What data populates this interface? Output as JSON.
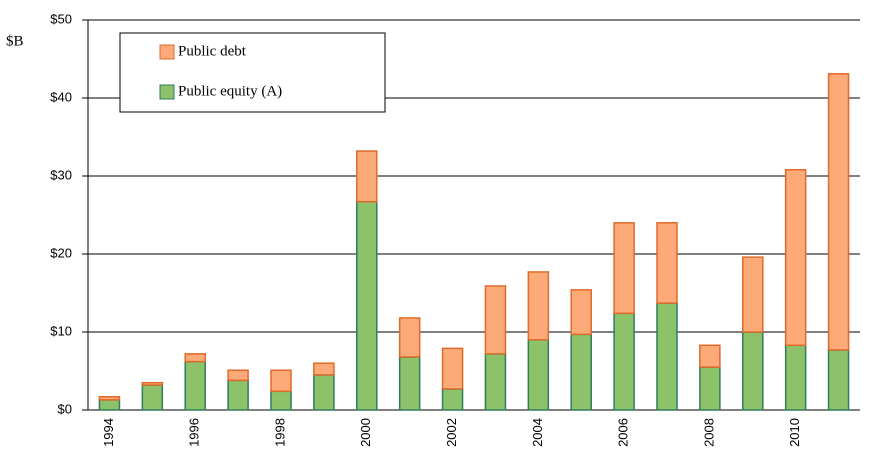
{
  "chart_data": {
    "type": "stacked_bar",
    "y_label": "$B",
    "categories": [
      "1994",
      null,
      "1996",
      null,
      "1998",
      null,
      "2000",
      null,
      "2002",
      null,
      "2004",
      null,
      "2006",
      null,
      "2008",
      null,
      "2010",
      null
    ],
    "series": [
      {
        "name": "Public equity (A)",
        "color": "#8dc26b",
        "stroke": "#2e7d5b",
        "values": [
          1.3,
          3.2,
          6.2,
          3.8,
          2.4,
          4.5,
          26.7,
          6.8,
          2.7,
          7.2,
          9.0,
          9.7,
          12.4,
          13.7,
          5.5,
          10.0,
          8.3,
          7.7
        ]
      },
      {
        "name": "Public debt",
        "color": "#fbaa78",
        "stroke": "#e06a2a",
        "values": [
          0.4,
          0.3,
          1.0,
          1.3,
          2.7,
          1.5,
          6.5,
          5.0,
          5.2,
          8.7,
          8.7,
          5.7,
          11.6,
          10.3,
          2.8,
          9.6,
          22.5,
          35.4
        ]
      }
    ],
    "ylim": [
      0,
      50
    ],
    "yticks": [
      {
        "value": 0,
        "label": "$0"
      },
      {
        "value": 10,
        "label": "$10"
      },
      {
        "value": 20,
        "label": "$20"
      },
      {
        "value": 30,
        "label": "$30"
      },
      {
        "value": 40,
        "label": "$40"
      },
      {
        "value": 50,
        "label": "$50"
      }
    ],
    "grid": true,
    "legend": "top-left"
  }
}
